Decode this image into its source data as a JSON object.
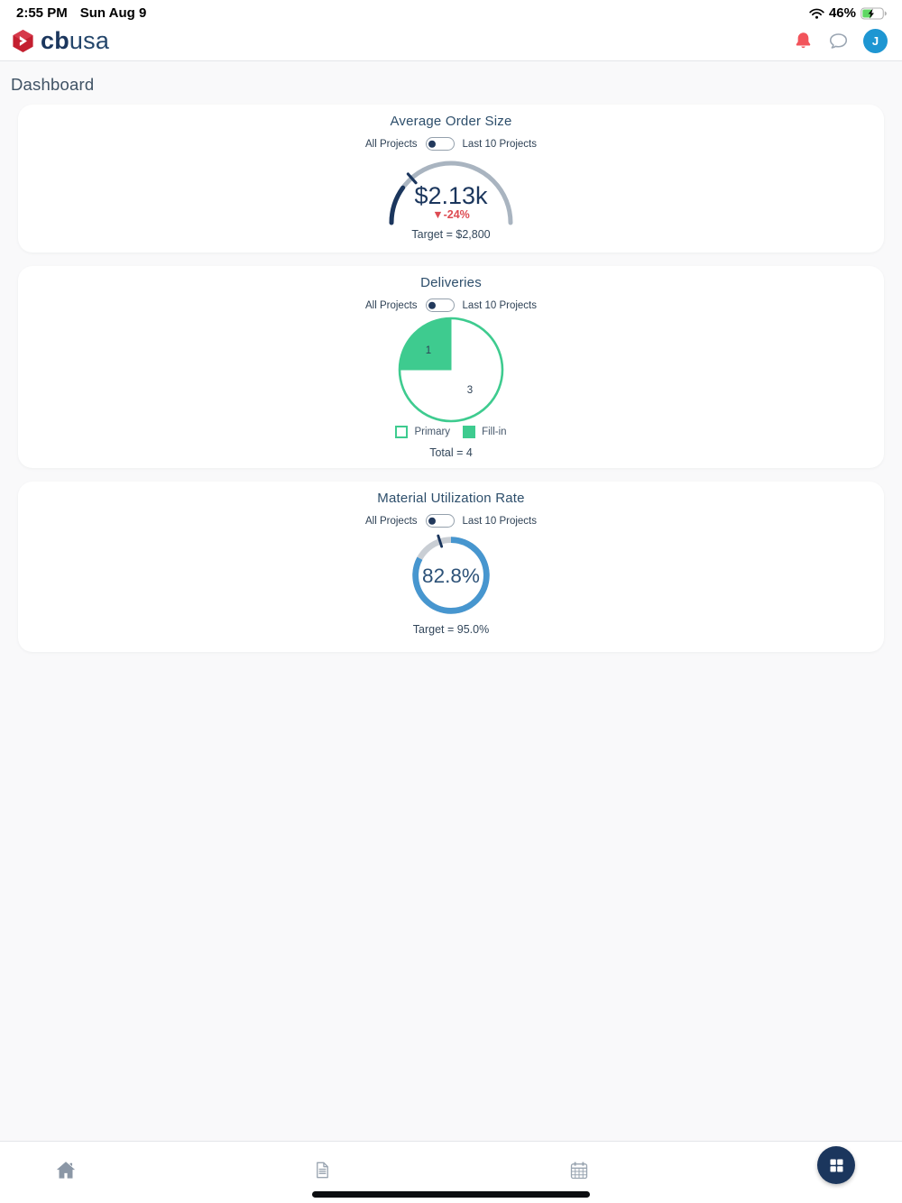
{
  "status_bar": {
    "time": "2:55 PM",
    "date": "Sun Aug 9",
    "battery_percent": "46%"
  },
  "header": {
    "logo": {
      "bold": "cb",
      "light": "usa"
    },
    "avatar_initial": "J"
  },
  "page_title": "Dashboard",
  "toggle": {
    "left_label": "All Projects",
    "right_label": "Last 10 Projects",
    "state": "left"
  },
  "cards": {
    "average_order_size": {
      "title": "Average Order Size",
      "value_label": "$2.13k",
      "delta_label": "▼-24%",
      "target_label": "Target = $2,800"
    },
    "deliveries": {
      "title": "Deliveries",
      "legend": [
        {
          "label": "Primary"
        },
        {
          "label": "Fill-in"
        }
      ],
      "total_label": "Total = 4"
    },
    "material_utilization": {
      "title": "Material Utilization Rate",
      "value_label": "82.8%",
      "target_label": "Target = 95.0%"
    }
  },
  "chart_data": [
    {
      "type": "gauge",
      "title": "Average Order Size",
      "value": 2130,
      "value_label": "$2.13k",
      "delta_percent": -24,
      "delta_label": "▼-24%",
      "target": 2800,
      "target_label": "Target = $2,800",
      "fill_fraction": 0.2,
      "tick_fraction": 0.27
    },
    {
      "type": "pie",
      "title": "Deliveries",
      "slices": [
        {
          "label": "Fill-in",
          "value": 1,
          "style": "solid"
        },
        {
          "label": "Primary",
          "value": 3,
          "style": "outline"
        }
      ],
      "total": 4,
      "total_label": "Total = 4"
    },
    {
      "type": "donut-gauge",
      "title": "Material Utilization Rate",
      "value": 82.8,
      "value_label": "82.8%",
      "target": 95.0,
      "target_label": "Target = 95.0%"
    }
  ],
  "colors": {
    "navy": "#1b365d",
    "green": "#3ecb8f",
    "blue_arc": "#4796cf",
    "gray_arc": "#a9b4c0",
    "red_delta": "#dd4b52",
    "bell_red": "#f2545b",
    "avatar_blue": "#1e96d2",
    "battery_green": "#5fd764"
  },
  "bottom_nav": {
    "items": [
      {
        "name": "home"
      },
      {
        "name": "documents"
      },
      {
        "name": "calendar"
      }
    ],
    "fab": "apps-grid"
  }
}
